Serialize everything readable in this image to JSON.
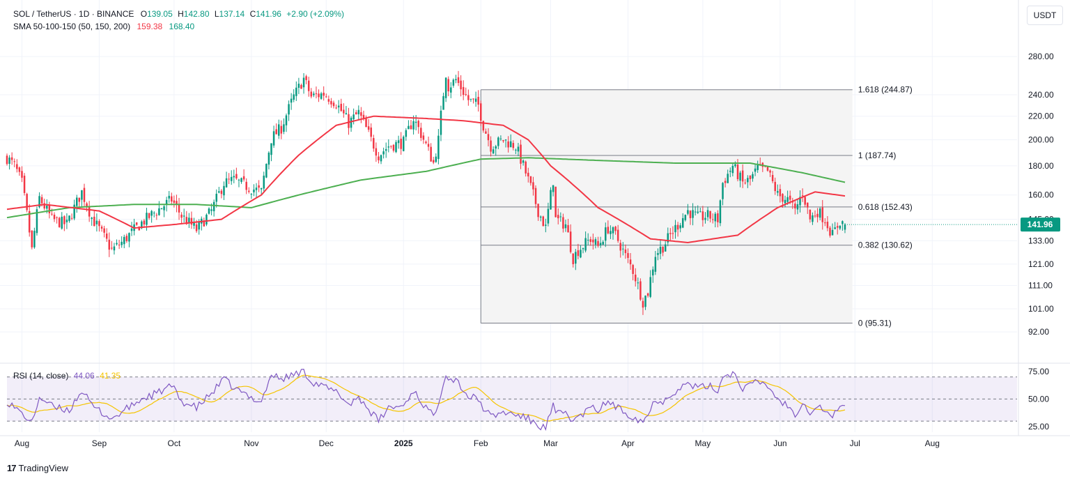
{
  "header": {
    "symbol_line": "SOL / TetherUS · 1D · BINANCE",
    "open_label": "O",
    "open": "139.05",
    "high_label": "H",
    "high": "142.80",
    "low_label": "L",
    "low": "137.14",
    "close_label": "C",
    "close": "141.96",
    "change": "+2.90 (+2.09%)",
    "sma_label": "SMA 50-100-150 (50, 150, 200)",
    "sma_150": "159.38",
    "sma_200": "168.40"
  },
  "currency_button": "USDT",
  "branding": {
    "name": "TradingView",
    "mark": "17"
  },
  "rsi": {
    "label": "RSI (14, close)",
    "value": "44.06",
    "ma_value": "41.35"
  },
  "colors": {
    "up": "#089981",
    "down": "#f23645",
    "sma150": "#f23645",
    "sma200": "#4caf50",
    "rsi": "#7e57c2",
    "rsi_ma": "#f5c400",
    "fib_fill": "#f4f4f4",
    "price_tag": "#089981"
  },
  "chart_data": {
    "type": "candlestick",
    "instrument": "SOL / TetherUS",
    "timeframe": "1D",
    "exchange": "BINANCE",
    "y_scale": "log",
    "ylim": [
      86,
      310
    ],
    "price_ticks": [
      "280.00",
      "240.00",
      "220.00",
      "200.00",
      "180.00",
      "160.00",
      "145.00",
      "133.00",
      "121.00",
      "111.00",
      "101.00",
      "92.00"
    ],
    "price_tick_values": [
      280,
      240,
      220,
      200,
      180,
      160,
      145,
      133,
      121,
      111,
      101,
      92
    ],
    "last_price": "141.96",
    "x_labels": [
      {
        "label": "Aug",
        "date": "2024-08-01"
      },
      {
        "label": "Sep",
        "date": "2024-09-01"
      },
      {
        "label": "Oct",
        "date": "2024-10-01"
      },
      {
        "label": "Nov",
        "date": "2024-11-01"
      },
      {
        "label": "Dec",
        "date": "2024-12-01"
      },
      {
        "label": "2025",
        "date": "2025-01-01",
        "bold": true
      },
      {
        "label": "Feb",
        "date": "2025-02-01"
      },
      {
        "label": "Mar",
        "date": "2025-03-01"
      },
      {
        "label": "Apr",
        "date": "2025-04-01"
      },
      {
        "label": "May",
        "date": "2025-05-01"
      },
      {
        "label": "Jun",
        "date": "2025-06-01"
      },
      {
        "label": "Jul",
        "date": "2025-07-01"
      },
      {
        "label": "Aug",
        "date": "2025-08-01"
      }
    ],
    "x_range": [
      "2024-07-26",
      "2025-09-04"
    ],
    "price_anchors": [
      [
        "2024-07-26",
        186
      ],
      [
        "2024-07-29",
        180
      ],
      [
        "2024-08-01",
        168
      ],
      [
        "2024-08-05",
        128
      ],
      [
        "2024-08-08",
        158
      ],
      [
        "2024-08-13",
        145
      ],
      [
        "2024-08-19",
        142
      ],
      [
        "2024-08-25",
        162
      ],
      [
        "2024-08-29",
        146
      ],
      [
        "2024-09-06",
        128
      ],
      [
        "2024-09-10",
        132
      ],
      [
        "2024-09-18",
        143
      ],
      [
        "2024-09-24",
        150
      ],
      [
        "2024-09-30",
        157
      ],
      [
        "2024-10-04",
        147
      ],
      [
        "2024-10-10",
        139
      ],
      [
        "2024-10-16",
        150
      ],
      [
        "2024-10-21",
        168
      ],
      [
        "2024-10-25",
        170
      ],
      [
        "2024-10-31",
        165
      ],
      [
        "2024-11-05",
        162
      ],
      [
        "2024-11-09",
        201
      ],
      [
        "2024-11-13",
        210
      ],
      [
        "2024-11-18",
        238
      ],
      [
        "2024-11-22",
        256
      ],
      [
        "2024-11-25",
        238
      ],
      [
        "2024-11-30",
        241
      ],
      [
        "2024-12-05",
        232
      ],
      [
        "2024-12-10",
        214
      ],
      [
        "2024-12-14",
        223
      ],
      [
        "2024-12-19",
        200
      ],
      [
        "2024-12-22",
        188
      ],
      [
        "2024-12-26",
        195
      ],
      [
        "2025-01-01",
        198
      ],
      [
        "2025-01-05",
        218
      ],
      [
        "2025-01-08",
        205
      ],
      [
        "2025-01-13",
        182
      ],
      [
        "2025-01-15",
        200
      ],
      [
        "2025-01-18",
        262
      ],
      [
        "2025-01-19",
        248
      ],
      [
        "2025-01-22",
        255
      ],
      [
        "2025-01-27",
        235
      ],
      [
        "2025-01-31",
        230
      ],
      [
        "2025-02-02",
        212
      ],
      [
        "2025-02-05",
        195
      ],
      [
        "2025-02-10",
        200
      ],
      [
        "2025-02-15",
        195
      ],
      [
        "2025-02-20",
        170
      ],
      [
        "2025-02-24",
        150
      ],
      [
        "2025-02-27",
        140
      ],
      [
        "2025-03-02",
        170
      ],
      [
        "2025-03-03",
        145
      ],
      [
        "2025-03-07",
        142
      ],
      [
        "2025-03-10",
        124
      ],
      [
        "2025-03-12",
        128
      ],
      [
        "2025-03-17",
        134
      ],
      [
        "2025-03-20",
        130
      ],
      [
        "2025-03-24",
        140
      ],
      [
        "2025-03-27",
        136
      ],
      [
        "2025-03-31",
        125
      ],
      [
        "2025-04-03",
        118
      ],
      [
        "2025-04-07",
        104
      ],
      [
        "2025-04-09",
        108
      ],
      [
        "2025-04-12",
        126
      ],
      [
        "2025-04-15",
        130
      ],
      [
        "2025-04-19",
        138
      ],
      [
        "2025-04-25",
        150
      ],
      [
        "2025-04-29",
        146
      ],
      [
        "2025-05-03",
        147
      ],
      [
        "2025-05-07",
        145
      ],
      [
        "2025-05-09",
        168
      ],
      [
        "2025-05-13",
        180
      ],
      [
        "2025-05-17",
        168
      ],
      [
        "2025-05-20",
        170
      ],
      [
        "2025-05-23",
        178
      ],
      [
        "2025-05-27",
        176
      ],
      [
        "2025-05-31",
        160
      ],
      [
        "2025-06-04",
        157
      ],
      [
        "2025-06-07",
        150
      ],
      [
        "2025-06-10",
        162
      ],
      [
        "2025-06-13",
        145
      ],
      [
        "2025-06-16",
        150
      ],
      [
        "2025-06-19",
        145
      ],
      [
        "2025-06-22",
        136
      ],
      [
        "2025-06-25",
        144
      ],
      [
        "2025-06-27",
        142
      ]
    ],
    "sma150_anchors": [
      [
        "2024-07-26",
        151
      ],
      [
        "2024-08-10",
        154
      ],
      [
        "2024-09-01",
        150
      ],
      [
        "2024-09-15",
        140
      ],
      [
        "2024-10-01",
        142
      ],
      [
        "2024-10-20",
        145
      ],
      [
        "2024-11-05",
        160
      ],
      [
        "2024-11-20",
        188
      ],
      [
        "2024-12-05",
        212
      ],
      [
        "2024-12-20",
        220
      ],
      [
        "2025-01-10",
        218
      ],
      [
        "2025-01-25",
        216
      ],
      [
        "2025-02-10",
        212
      ],
      [
        "2025-02-20",
        200
      ],
      [
        "2025-03-01",
        180
      ],
      [
        "2025-03-20",
        152
      ],
      [
        "2025-04-10",
        134
      ],
      [
        "2025-04-25",
        132
      ],
      [
        "2025-05-15",
        136
      ],
      [
        "2025-05-31",
        152
      ],
      [
        "2025-06-15",
        162
      ],
      [
        "2025-06-27",
        159.38
      ]
    ],
    "sma200_anchors": [
      [
        "2024-07-26",
        146
      ],
      [
        "2024-08-20",
        152
      ],
      [
        "2024-09-15",
        154
      ],
      [
        "2024-10-10",
        154
      ],
      [
        "2024-11-01",
        152
      ],
      [
        "2024-11-20",
        160
      ],
      [
        "2024-12-15",
        170
      ],
      [
        "2025-01-10",
        176
      ],
      [
        "2025-02-01",
        185
      ],
      [
        "2025-02-20",
        186
      ],
      [
        "2025-03-20",
        184
      ],
      [
        "2025-04-20",
        182
      ],
      [
        "2025-05-20",
        182
      ],
      [
        "2025-06-10",
        175
      ],
      [
        "2025-06-27",
        168.4
      ]
    ],
    "fibonacci": {
      "start": "2025-02-01",
      "end": "2025-06-30",
      "levels": [
        {
          "ratio": "1.618",
          "price": 244.87,
          "label": "1.618 (244.87)"
        },
        {
          "ratio": "1",
          "price": 187.74,
          "label": "1 (187.74)"
        },
        {
          "ratio": "0.618",
          "price": 152.43,
          "label": "0.618 (152.43)"
        },
        {
          "ratio": "0.382",
          "price": 130.62,
          "label": "0.382 (130.62)"
        },
        {
          "ratio": "0",
          "price": 95.31,
          "label": "0 (95.31)"
        }
      ]
    },
    "rsi": {
      "ticks": [
        "75.00",
        "50.00",
        "25.00"
      ],
      "tick_values": [
        75,
        50,
        25
      ],
      "bands": [
        30,
        50,
        70
      ],
      "ylim": [
        20,
        78
      ],
      "anchors": [
        [
          "2024-07-26",
          48
        ],
        [
          "2024-08-02",
          35
        ],
        [
          "2024-08-05",
          28
        ],
        [
          "2024-08-08",
          52
        ],
        [
          "2024-08-14",
          42
        ],
        [
          "2024-08-20",
          40
        ],
        [
          "2024-08-25",
          58
        ],
        [
          "2024-08-29",
          44
        ],
        [
          "2024-09-06",
          32
        ],
        [
          "2024-09-10",
          38
        ],
        [
          "2024-09-18",
          50
        ],
        [
          "2024-09-24",
          55
        ],
        [
          "2024-09-30",
          62
        ],
        [
          "2024-10-04",
          48
        ],
        [
          "2024-10-10",
          42
        ],
        [
          "2024-10-16",
          55
        ],
        [
          "2024-10-21",
          68
        ],
        [
          "2024-10-25",
          60
        ],
        [
          "2024-10-31",
          52
        ],
        [
          "2024-11-05",
          48
        ],
        [
          "2024-11-09",
          72
        ],
        [
          "2024-11-13",
          68
        ],
        [
          "2024-11-18",
          72
        ],
        [
          "2024-11-22",
          76
        ],
        [
          "2024-11-25",
          66
        ],
        [
          "2024-12-01",
          60
        ],
        [
          "2024-12-06",
          55
        ],
        [
          "2024-12-10",
          45
        ],
        [
          "2024-12-14",
          52
        ],
        [
          "2024-12-19",
          38
        ],
        [
          "2024-12-22",
          30
        ],
        [
          "2024-12-26",
          42
        ],
        [
          "2025-01-01",
          44
        ],
        [
          "2025-01-05",
          58
        ],
        [
          "2025-01-08",
          48
        ],
        [
          "2025-01-13",
          34
        ],
        [
          "2025-01-15",
          48
        ],
        [
          "2025-01-18",
          74
        ],
        [
          "2025-01-19",
          68
        ],
        [
          "2025-01-22",
          68
        ],
        [
          "2025-01-27",
          52
        ],
        [
          "2025-01-31",
          50
        ],
        [
          "2025-02-02",
          42
        ],
        [
          "2025-02-05",
          34
        ],
        [
          "2025-02-10",
          38
        ],
        [
          "2025-02-15",
          36
        ],
        [
          "2025-02-20",
          32
        ],
        [
          "2025-02-24",
          26
        ],
        [
          "2025-02-27",
          24
        ],
        [
          "2025-03-02",
          44
        ],
        [
          "2025-03-03",
          36
        ],
        [
          "2025-03-07",
          38
        ],
        [
          "2025-03-10",
          30
        ],
        [
          "2025-03-12",
          33
        ],
        [
          "2025-03-17",
          42
        ],
        [
          "2025-03-20",
          40
        ],
        [
          "2025-03-24",
          48
        ],
        [
          "2025-03-27",
          43
        ],
        [
          "2025-03-31",
          38
        ],
        [
          "2025-04-03",
          34
        ],
        [
          "2025-04-07",
          30
        ],
        [
          "2025-04-09",
          36
        ],
        [
          "2025-04-12",
          50
        ],
        [
          "2025-04-15",
          48
        ],
        [
          "2025-04-19",
          56
        ],
        [
          "2025-04-25",
          64
        ],
        [
          "2025-04-29",
          60
        ],
        [
          "2025-05-03",
          62
        ],
        [
          "2025-05-07",
          58
        ],
        [
          "2025-05-09",
          70
        ],
        [
          "2025-05-13",
          74
        ],
        [
          "2025-05-17",
          60
        ],
        [
          "2025-05-20",
          62
        ],
        [
          "2025-05-23",
          66
        ],
        [
          "2025-05-27",
          62
        ],
        [
          "2025-05-31",
          50
        ],
        [
          "2025-06-04",
          44
        ],
        [
          "2025-06-07",
          36
        ],
        [
          "2025-06-10",
          48
        ],
        [
          "2025-06-13",
          38
        ],
        [
          "2025-06-16",
          44
        ],
        [
          "2025-06-19",
          40
        ],
        [
          "2025-06-22",
          32
        ],
        [
          "2025-06-25",
          46
        ],
        [
          "2025-06-27",
          44.06
        ]
      ]
    }
  }
}
